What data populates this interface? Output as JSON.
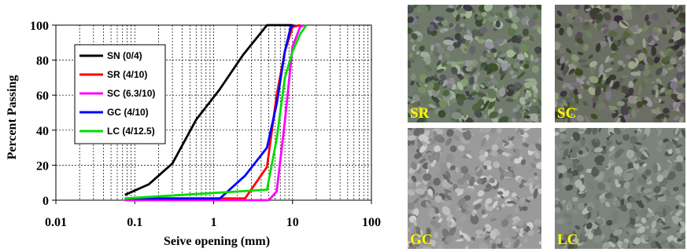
{
  "chart_data": {
    "type": "line",
    "title": "",
    "xlabel": "Seive opening (mm)",
    "ylabel": "Percent Passing",
    "x_scale": "log",
    "xlim": [
      0.01,
      100
    ],
    "ylim": [
      0,
      100
    ],
    "x_ticks": [
      "0.01",
      "0.1",
      "1",
      "10",
      "100"
    ],
    "y_ticks": [
      "0",
      "20",
      "40",
      "60",
      "80",
      "100"
    ],
    "grid": "dashed vertical minor and major lines, dashed horizontal lines",
    "legend_position": "left",
    "series": [
      {
        "name": "SN (0/4)",
        "color": "#000000",
        "points": [
          [
            0.075,
            3
          ],
          [
            0.15,
            9
          ],
          [
            0.3,
            21
          ],
          [
            0.6,
            46
          ],
          [
            1.18,
            63
          ],
          [
            2.36,
            83
          ],
          [
            4.75,
            100
          ],
          [
            10,
            100
          ]
        ]
      },
      {
        "name": "SR (4/10)",
        "color": "#ff0000",
        "points": [
          [
            0.075,
            1
          ],
          [
            2.5,
            1
          ],
          [
            4.75,
            19
          ],
          [
            6.3,
            60
          ],
          [
            8,
            85
          ],
          [
            10,
            99
          ],
          [
            12.5,
            100
          ]
        ]
      },
      {
        "name": "SC (6.3/10)",
        "color": "#ff00ff",
        "points": [
          [
            0.075,
            0
          ],
          [
            5,
            0
          ],
          [
            6.3,
            5
          ],
          [
            8,
            45
          ],
          [
            10,
            88
          ],
          [
            12.5,
            99
          ],
          [
            14,
            100
          ]
        ]
      },
      {
        "name": "GC (4/10)",
        "color": "#0000ff",
        "points": [
          [
            0.075,
            1
          ],
          [
            1.2,
            1
          ],
          [
            2.5,
            14
          ],
          [
            4.75,
            30
          ],
          [
            6.3,
            55
          ],
          [
            8,
            85
          ],
          [
            9.5,
            99
          ],
          [
            10.5,
            100
          ]
        ]
      },
      {
        "name": "LC (4/12.5)",
        "color": "#00dd00",
        "points": [
          [
            0.075,
            1
          ],
          [
            4.75,
            6
          ],
          [
            6.3,
            35
          ],
          [
            8,
            70
          ],
          [
            10,
            85
          ],
          [
            12.5,
            95
          ],
          [
            15,
            100
          ]
        ]
      }
    ]
  },
  "photos": [
    {
      "label": "SR",
      "tone": "#6f7a6a"
    },
    {
      "label": "SC",
      "tone": "#6b6e62"
    },
    {
      "label": "GC",
      "tone": "#9a9a9a"
    },
    {
      "label": "LC",
      "tone": "#7c827c"
    }
  ]
}
